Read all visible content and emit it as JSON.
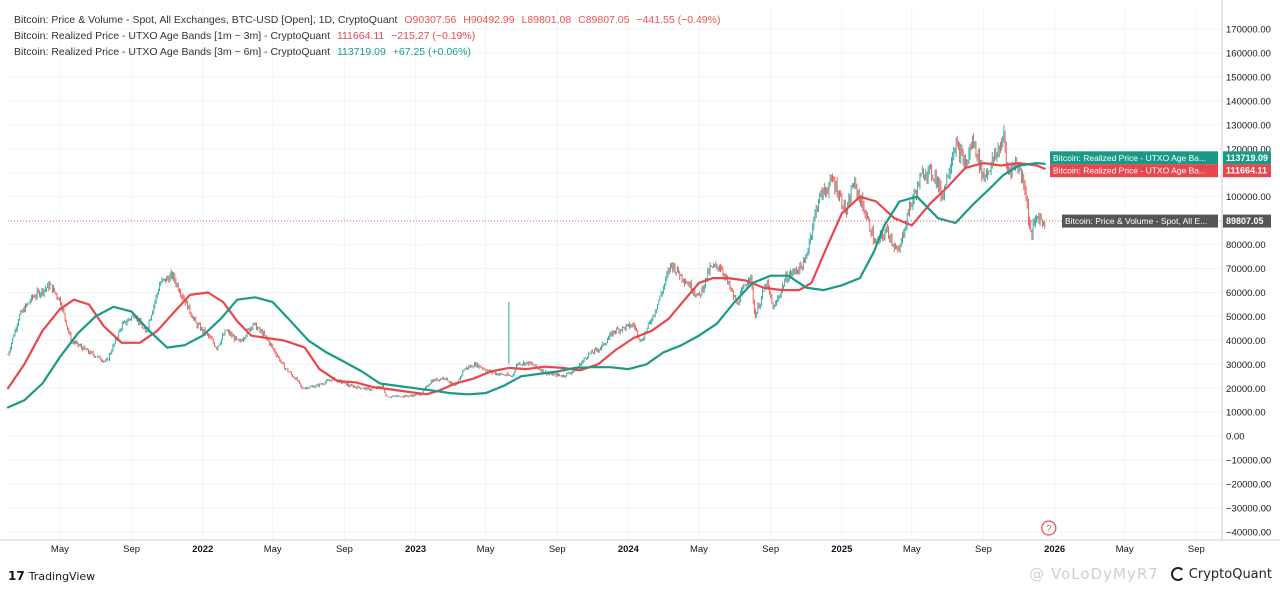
{
  "legend": {
    "price": {
      "title": "Bitcoin: Price & Volume - Spot, All Exchanges, BTC-USD [Open], 1D, CryptoQuant",
      "o": "O90307.56",
      "h": "H90492.99",
      "l": "L89801.08",
      "c": "C89807.05",
      "chg": "−441.55 (−0.49%)"
    },
    "band_1m3m": {
      "title": "Bitcoin: Realized Price - UTXO Age Bands [1m ~ 3m] - CryptoQuant",
      "value": "111664.11",
      "chg": "−215.27 (−0.19%)"
    },
    "band_3m6m": {
      "title": "Bitcoin: Realized Price - UTXO Age Bands [3m ~ 6m] - CryptoQuant",
      "value": "113719.09",
      "chg": "+67.25 (+0.06%)"
    }
  },
  "branding": {
    "tradingview": "TradingView",
    "tv_logo": "17",
    "signature": "@ VoLoDyMyR7",
    "cryptoquant": "CryptoQuant"
  },
  "colors": {
    "price_up": "#26a69a",
    "price_down": "#ef5350",
    "band_1m3m": "#e8474d",
    "band_3m6m": "#1a9a86",
    "grid": "#f0f3fa",
    "axis_text": "#131722"
  },
  "chart_data": {
    "type": "line",
    "y_unit": "USD",
    "ylim": [
      -40000,
      170000
    ],
    "y_ticks": [
      "170000.00",
      "160000.00",
      "150000.00",
      "140000.00",
      "130000.00",
      "120000.00",
      "110000.00",
      "100000.00",
      "90000.00",
      "80000.00",
      "70000.00",
      "60000.00",
      "50000.00",
      "40000.00",
      "30000.00",
      "20000.00",
      "10000.00",
      "0.00",
      "−10000.00",
      "−20000.00",
      "−30000.00",
      "−40000.00"
    ],
    "x_range": [
      "2021-02-01",
      "2026-10-15"
    ],
    "x_ticks": [
      {
        "date": "2021-05-01",
        "label": "May"
      },
      {
        "date": "2021-09-01",
        "label": "Sep"
      },
      {
        "date": "2022-01-01",
        "label": "2022"
      },
      {
        "date": "2022-05-01",
        "label": "May"
      },
      {
        "date": "2022-09-01",
        "label": "Sep"
      },
      {
        "date": "2023-01-01",
        "label": "2023"
      },
      {
        "date": "2023-05-01",
        "label": "May"
      },
      {
        "date": "2023-09-01",
        "label": "Sep"
      },
      {
        "date": "2024-01-01",
        "label": "2024"
      },
      {
        "date": "2024-05-01",
        "label": "May"
      },
      {
        "date": "2024-09-01",
        "label": "Sep"
      },
      {
        "date": "2025-01-01",
        "label": "2025"
      },
      {
        "date": "2025-05-01",
        "label": "May"
      },
      {
        "date": "2025-09-01",
        "label": "Sep"
      },
      {
        "date": "2026-01-01",
        "label": "2026"
      },
      {
        "date": "2026-05-01",
        "label": "May"
      },
      {
        "date": "2026-09-01",
        "label": "Sep"
      }
    ],
    "series": [
      {
        "name": "Bitcoin: Price & Volume - Spot, All Exchanges, BTC-USD [Open]",
        "kind": "price",
        "color": "#555555",
        "last": 89807.05,
        "points": [
          [
            "2021-02-01",
            34000
          ],
          [
            "2021-02-20",
            50000
          ],
          [
            "2021-03-15",
            58000
          ],
          [
            "2021-04-14",
            63000
          ],
          [
            "2021-05-01",
            57000
          ],
          [
            "2021-05-20",
            40000
          ],
          [
            "2021-06-20",
            35000
          ],
          [
            "2021-07-20",
            31000
          ],
          [
            "2021-08-15",
            46000
          ],
          [
            "2021-09-06",
            51000
          ],
          [
            "2021-09-25",
            43000
          ],
          [
            "2021-10-20",
            64000
          ],
          [
            "2021-11-10",
            67000
          ],
          [
            "2021-12-01",
            57000
          ],
          [
            "2021-12-20",
            47000
          ],
          [
            "2022-01-10",
            42000
          ],
          [
            "2022-01-25",
            37000
          ],
          [
            "2022-02-10",
            44000
          ],
          [
            "2022-03-05",
            39000
          ],
          [
            "2022-03-28",
            47000
          ],
          [
            "2022-04-20",
            41000
          ],
          [
            "2022-05-08",
            34000
          ],
          [
            "2022-05-20",
            29000
          ],
          [
            "2022-06-13",
            23000
          ],
          [
            "2022-06-20",
            20000
          ],
          [
            "2022-07-15",
            21000
          ],
          [
            "2022-08-13",
            24000
          ],
          [
            "2022-09-10",
            21000
          ],
          [
            "2022-10-15",
            19500
          ],
          [
            "2022-11-05",
            21000
          ],
          [
            "2022-11-12",
            16500
          ],
          [
            "2022-12-20",
            16800
          ],
          [
            "2023-01-10",
            17500
          ],
          [
            "2023-01-28",
            23000
          ],
          [
            "2023-02-20",
            24500
          ],
          [
            "2023-03-10",
            20500
          ],
          [
            "2023-03-25",
            28000
          ],
          [
            "2023-04-14",
            30000
          ],
          [
            "2023-05-12",
            26500
          ],
          [
            "2023-06-15",
            25000
          ],
          [
            "2023-06-25",
            30500
          ],
          [
            "2023-07-15",
            30500
          ],
          [
            "2023-08-17",
            26000
          ],
          [
            "2023-09-11",
            25200
          ],
          [
            "2023-10-01",
            27500
          ],
          [
            "2023-10-24",
            34000
          ],
          [
            "2023-11-15",
            37000
          ],
          [
            "2023-12-08",
            44000
          ],
          [
            "2024-01-10",
            46500
          ],
          [
            "2024-01-23",
            39500
          ],
          [
            "2024-02-15",
            52000
          ],
          [
            "2024-03-01",
            62000
          ],
          [
            "2024-03-14",
            72000
          ],
          [
            "2024-04-15",
            63000
          ],
          [
            "2024-05-01",
            58000
          ],
          [
            "2024-05-20",
            70000
          ],
          [
            "2024-06-07",
            71000
          ],
          [
            "2024-07-05",
            55000
          ],
          [
            "2024-07-28",
            68000
          ],
          [
            "2024-08-05",
            50000
          ],
          [
            "2024-08-25",
            64000
          ],
          [
            "2024-09-06",
            53000
          ],
          [
            "2024-09-27",
            66000
          ],
          [
            "2024-10-29",
            72000
          ],
          [
            "2024-11-12",
            88000
          ],
          [
            "2024-11-22",
            99000
          ],
          [
            "2024-12-17",
            107000
          ],
          [
            "2025-01-10",
            93000
          ],
          [
            "2025-01-20",
            106000
          ],
          [
            "2025-02-05",
            97000
          ],
          [
            "2025-02-28",
            80000
          ],
          [
            "2025-03-20",
            86000
          ],
          [
            "2025-04-08",
            76000
          ],
          [
            "2025-04-25",
            94000
          ],
          [
            "2025-05-22",
            111000
          ],
          [
            "2025-06-10",
            109000
          ],
          [
            "2025-06-22",
            100000
          ],
          [
            "2025-07-14",
            122000
          ],
          [
            "2025-08-02",
            113000
          ],
          [
            "2025-08-14",
            124000
          ],
          [
            "2025-09-01",
            108000
          ],
          [
            "2025-09-20",
            116000
          ],
          [
            "2025-10-06",
            125000
          ],
          [
            "2025-10-11",
            111000
          ],
          [
            "2025-10-28",
            114000
          ],
          [
            "2025-11-10",
            106000
          ],
          [
            "2025-11-21",
            84000
          ],
          [
            "2025-12-02",
            92000
          ],
          [
            "2025-12-10",
            90000
          ],
          [
            "2025-12-15",
            89807.05
          ]
        ]
      },
      {
        "name": "Bitcoin: Realized Price - UTXO Age Bands [1m ~ 3m]",
        "kind": "band",
        "color": "#e8474d",
        "last": 111664.11,
        "points": [
          [
            "2021-02-01",
            20000
          ],
          [
            "2021-03-01",
            30000
          ],
          [
            "2021-04-01",
            44000
          ],
          [
            "2021-05-01",
            53000
          ],
          [
            "2021-05-25",
            57000
          ],
          [
            "2021-06-20",
            55000
          ],
          [
            "2021-07-15",
            46000
          ],
          [
            "2021-08-15",
            39000
          ],
          [
            "2021-09-15",
            39000
          ],
          [
            "2021-10-15",
            44000
          ],
          [
            "2021-11-10",
            51000
          ],
          [
            "2021-12-10",
            59000
          ],
          [
            "2022-01-10",
            60000
          ],
          [
            "2022-02-05",
            56000
          ],
          [
            "2022-03-01",
            48000
          ],
          [
            "2022-03-25",
            42000
          ],
          [
            "2022-04-20",
            41000
          ],
          [
            "2022-05-20",
            40000
          ],
          [
            "2022-06-25",
            37000
          ],
          [
            "2022-07-20",
            28000
          ],
          [
            "2022-08-20",
            23000
          ],
          [
            "2022-09-20",
            22500
          ],
          [
            "2022-10-20",
            20500
          ],
          [
            "2022-11-20",
            19500
          ],
          [
            "2022-12-20",
            18500
          ],
          [
            "2023-01-20",
            17500
          ],
          [
            "2023-02-10",
            19000
          ],
          [
            "2023-03-10",
            22000
          ],
          [
            "2023-04-10",
            24000
          ],
          [
            "2023-05-10",
            27000
          ],
          [
            "2023-06-10",
            28500
          ],
          [
            "2023-07-10",
            28000
          ],
          [
            "2023-08-10",
            29000
          ],
          [
            "2023-09-10",
            28500
          ],
          [
            "2023-10-10",
            27500
          ],
          [
            "2023-11-10",
            30000
          ],
          [
            "2023-12-10",
            36000
          ],
          [
            "2024-01-10",
            41000
          ],
          [
            "2024-02-10",
            44000
          ],
          [
            "2024-03-10",
            49000
          ],
          [
            "2024-04-10",
            58000
          ],
          [
            "2024-05-01",
            64000
          ],
          [
            "2024-05-25",
            66000
          ],
          [
            "2024-06-20",
            66000
          ],
          [
            "2024-07-20",
            65000
          ],
          [
            "2024-08-20",
            62000
          ],
          [
            "2024-09-20",
            61000
          ],
          [
            "2024-10-20",
            61000
          ],
          [
            "2024-11-10",
            64000
          ],
          [
            "2024-12-01",
            76000
          ],
          [
            "2025-01-01",
            93000
          ],
          [
            "2025-02-01",
            100000
          ],
          [
            "2025-03-01",
            98000
          ],
          [
            "2025-04-01",
            91000
          ],
          [
            "2025-05-01",
            88000
          ],
          [
            "2025-06-01",
            97000
          ],
          [
            "2025-07-01",
            104000
          ],
          [
            "2025-08-01",
            112000
          ],
          [
            "2025-09-01",
            114000
          ],
          [
            "2025-10-01",
            113000
          ],
          [
            "2025-11-01",
            114000
          ],
          [
            "2025-12-01",
            113000
          ],
          [
            "2025-12-15",
            111664.11
          ]
        ]
      },
      {
        "name": "Bitcoin: Realized Price - UTXO Age Bands [3m ~ 6m]",
        "kind": "band",
        "color": "#1a9a86",
        "last": 113719.09,
        "points": [
          [
            "2021-02-01",
            12000
          ],
          [
            "2021-03-01",
            15000
          ],
          [
            "2021-04-01",
            22000
          ],
          [
            "2021-05-01",
            33000
          ],
          [
            "2021-06-01",
            43000
          ],
          [
            "2021-07-01",
            50000
          ],
          [
            "2021-08-01",
            54000
          ],
          [
            "2021-09-01",
            52000
          ],
          [
            "2021-10-01",
            44000
          ],
          [
            "2021-11-01",
            37000
          ],
          [
            "2021-12-01",
            38000
          ],
          [
            "2022-01-01",
            42000
          ],
          [
            "2022-02-01",
            49000
          ],
          [
            "2022-03-01",
            57000
          ],
          [
            "2022-04-01",
            58000
          ],
          [
            "2022-05-01",
            56000
          ],
          [
            "2022-06-01",
            48000
          ],
          [
            "2022-07-01",
            40000
          ],
          [
            "2022-08-01",
            35000
          ],
          [
            "2022-09-01",
            31000
          ],
          [
            "2022-10-01",
            27000
          ],
          [
            "2022-11-01",
            22000
          ],
          [
            "2022-12-01",
            21000
          ],
          [
            "2023-01-01",
            20000
          ],
          [
            "2023-02-01",
            19000
          ],
          [
            "2023-03-01",
            18000
          ],
          [
            "2023-04-01",
            17500
          ],
          [
            "2023-05-01",
            18000
          ],
          [
            "2023-06-01",
            21000
          ],
          [
            "2023-07-01",
            25000
          ],
          [
            "2023-08-01",
            26000
          ],
          [
            "2023-09-01",
            27000
          ],
          [
            "2023-10-01",
            28500
          ],
          [
            "2023-11-01",
            28800
          ],
          [
            "2023-12-01",
            28800
          ],
          [
            "2024-01-01",
            28000
          ],
          [
            "2024-02-01",
            30000
          ],
          [
            "2024-03-01",
            35000
          ],
          [
            "2024-04-01",
            38000
          ],
          [
            "2024-05-01",
            42000
          ],
          [
            "2024-06-01",
            47000
          ],
          [
            "2024-07-01",
            56000
          ],
          [
            "2024-08-01",
            64000
          ],
          [
            "2024-09-01",
            67000
          ],
          [
            "2024-10-01",
            67000
          ],
          [
            "2024-11-01",
            62000
          ],
          [
            "2024-12-01",
            61000
          ],
          [
            "2025-01-01",
            63000
          ],
          [
            "2025-02-01",
            66000
          ],
          [
            "2025-02-25",
            77000
          ],
          [
            "2025-03-15",
            88000
          ],
          [
            "2025-04-10",
            98000
          ],
          [
            "2025-05-10",
            100000
          ],
          [
            "2025-06-15",
            91000
          ],
          [
            "2025-07-15",
            89000
          ],
          [
            "2025-08-15",
            97000
          ],
          [
            "2025-09-10",
            103000
          ],
          [
            "2025-10-05",
            109000
          ],
          [
            "2025-11-01",
            113000
          ],
          [
            "2025-12-01",
            114000
          ],
          [
            "2025-12-15",
            113719.09
          ]
        ]
      }
    ],
    "last_value_tags": [
      {
        "series": "Bitcoin: Realized Price - UTXO Age Bands [3m ~ 6m]",
        "label": "Bitcoin: Realized Price - UTXO Age Ba...",
        "value": "113719.09"
      },
      {
        "series": "Bitcoin: Realized Price - UTXO Age Bands [1m ~ 3m]",
        "label": "Bitcoin: Realized Price - UTXO Age Ba...",
        "value": "111664.11"
      },
      {
        "series": "Bitcoin: Price & Volume - Spot, All Exchanges, BTC-USD [Open]",
        "label": "Bitcoin: Price & Volume - Spot, All E...",
        "value": "89807.05"
      }
    ],
    "annotation_marker": "?"
  }
}
